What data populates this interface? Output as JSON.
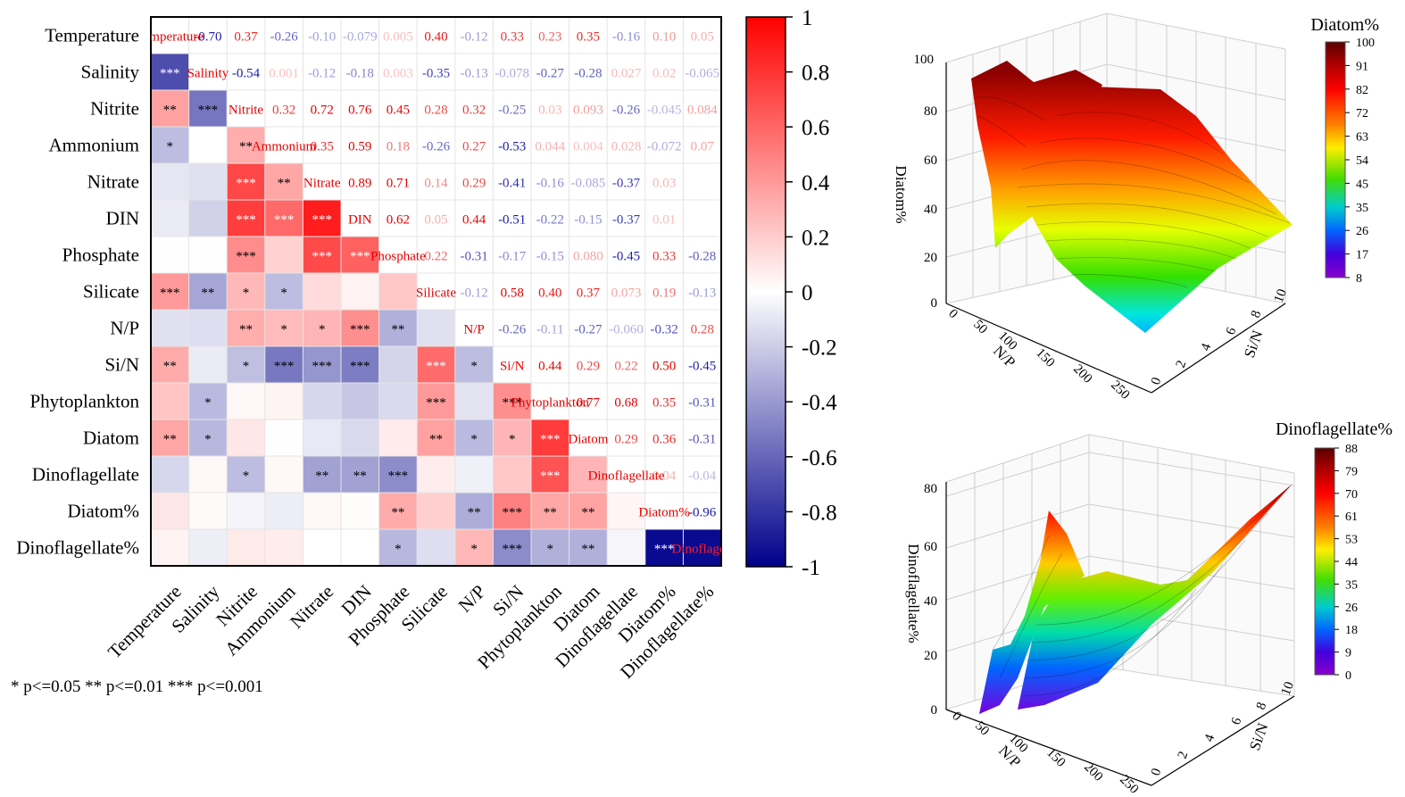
{
  "chart_data": [
    {
      "type": "heatmap",
      "variables": [
        "Temperature",
        "Salinity",
        "Nitrite",
        "Ammonium",
        "Nitrate",
        "DIN",
        "Phosphate",
        "Silicate",
        "N/P",
        "Si/N",
        "Phytoplankton",
        "Diatom",
        "Dinoflagellate",
        "Diatom%",
        "Dinoflagellate%"
      ],
      "diagonal_labels": [
        "Temperature",
        "Salinity",
        "Nitrite",
        "Ammonium",
        "Nitrate",
        "DIN",
        "Phosphate",
        "Silicate",
        "N/P",
        "Si/N",
        "Phytoplankton",
        "Diatom",
        "Dinoflagellate",
        "Diatom%",
        "Dinoflagell"
      ],
      "upper_values": [
        [
          "",
          "-0.70",
          "0.37",
          "-0.26",
          "-0.10",
          "-0.079",
          "0.005",
          "0.40",
          "-0.12",
          "0.33",
          "0.23",
          "0.35",
          "-0.16",
          "0.10",
          "0.05"
        ],
        [
          "",
          "",
          "-0.54",
          "0.001",
          "-0.12",
          "-0.18",
          "0.003",
          "-0.35",
          "-0.13",
          "-0.078",
          "-0.27",
          "-0.28",
          "0.027",
          "0.02",
          "-0.065"
        ],
        [
          "",
          "",
          "",
          "0.32",
          "0.72",
          "0.76",
          "0.45",
          "0.28",
          "0.32",
          "-0.25",
          "0.03",
          "0.093",
          "-0.26",
          "-0.045",
          "0.084"
        ],
        [
          "",
          "",
          "",
          "",
          "0.35",
          "0.59",
          "0.18",
          "-0.26",
          "0.27",
          "-0.53",
          "0.044",
          "0.004",
          "0.028",
          "-0.072",
          "0.07"
        ],
        [
          "",
          "",
          "",
          "",
          "",
          "0.89",
          "0.71",
          "0.14",
          "0.29",
          "-0.41",
          "-0.16",
          "-0.085",
          "-0.37",
          "0.03",
          ""
        ],
        [
          "",
          "",
          "",
          "",
          "",
          "",
          "0.62",
          "0.05",
          "0.44",
          "-0.51",
          "-0.22",
          "-0.15",
          "-0.37",
          "0.01",
          ""
        ],
        [
          "",
          "",
          "",
          "",
          "",
          "",
          "",
          "0.22",
          "-0.31",
          "-0.17",
          "-0.15",
          "0.080",
          "-0.45",
          "0.33",
          "-0.28"
        ],
        [
          "",
          "",
          "",
          "",
          "",
          "",
          "",
          "",
          "-0.12",
          "0.58",
          "0.40",
          "0.37",
          "0.073",
          "0.19",
          "-0.13"
        ],
        [
          "",
          "",
          "",
          "",
          "",
          "",
          "",
          "",
          "",
          "-0.26",
          "-0.11",
          "-0.27",
          "-0.060",
          "-0.32",
          "0.28"
        ],
        [
          "",
          "",
          "",
          "",
          "",
          "",
          "",
          "",
          "",
          "",
          "0.44",
          "0.29",
          "0.22",
          "0.50",
          "-0.45"
        ],
        [
          "",
          "",
          "",
          "",
          "",
          "",
          "",
          "",
          "",
          "",
          "",
          "0.77",
          "0.68",
          "0.35",
          "-0.31"
        ],
        [
          "",
          "",
          "",
          "",
          "",
          "",
          "",
          "",
          "",
          "",
          "",
          "",
          "0.29",
          "0.36",
          "-0.31"
        ],
        [
          "",
          "",
          "",
          "",
          "",
          "",
          "",
          "",
          "",
          "",
          "",
          "",
          "",
          "0.04",
          "-0.04"
        ],
        [
          "",
          "",
          "",
          "",
          "",
          "",
          "",
          "",
          "",
          "",
          "",
          "",
          "",
          "",
          "-0.96"
        ],
        [
          "",
          "",
          "",
          "",
          "",
          "",
          "",
          "",
          "",
          "",
          "",
          "",
          "",
          "",
          ""
        ]
      ],
      "lower_values": [
        [
          1.0
        ],
        [
          -0.7,
          1.0
        ],
        [
          0.37,
          -0.54,
          1.0
        ],
        [
          -0.26,
          0.001,
          0.32,
          1.0
        ],
        [
          -0.1,
          -0.12,
          0.72,
          0.35,
          1.0
        ],
        [
          -0.079,
          -0.18,
          0.76,
          0.59,
          0.89,
          1.0
        ],
        [
          0.005,
          0.003,
          0.45,
          0.18,
          0.71,
          0.62,
          1.0
        ],
        [
          0.4,
          -0.35,
          0.28,
          -0.26,
          0.14,
          0.05,
          0.22,
          1.0
        ],
        [
          -0.12,
          -0.13,
          0.32,
          0.27,
          0.29,
          0.44,
          -0.31,
          -0.12,
          1.0
        ],
        [
          0.33,
          -0.078,
          -0.25,
          -0.53,
          -0.41,
          -0.51,
          -0.17,
          0.58,
          -0.26,
          1.0
        ],
        [
          0.23,
          -0.27,
          0.03,
          0.044,
          -0.16,
          -0.22,
          -0.15,
          0.4,
          -0.11,
          0.44,
          1.0
        ],
        [
          0.35,
          -0.28,
          0.093,
          0.004,
          -0.085,
          -0.15,
          0.08,
          0.37,
          -0.27,
          0.29,
          0.77,
          1.0
        ],
        [
          -0.16,
          0.027,
          -0.26,
          0.028,
          -0.37,
          -0.37,
          -0.45,
          0.073,
          -0.06,
          0.22,
          0.68,
          0.29,
          1.0
        ],
        [
          0.1,
          0.02,
          -0.045,
          -0.072,
          0.03,
          0.01,
          0.33,
          0.19,
          -0.32,
          0.5,
          0.35,
          0.36,
          0.04,
          1.0
        ],
        [
          0.05,
          -0.065,
          0.084,
          0.07,
          0.0,
          0.0,
          -0.28,
          -0.13,
          0.28,
          -0.45,
          -0.31,
          -0.31,
          -0.04,
          -0.96,
          -0.96
        ]
      ],
      "significance": [
        [
          ""
        ],
        [
          "***",
          ""
        ],
        [
          "**",
          "***",
          ""
        ],
        [
          "*",
          "",
          "**",
          ""
        ],
        [
          "",
          "",
          "***",
          "**",
          ""
        ],
        [
          "",
          "",
          "***",
          "***",
          "***",
          ""
        ],
        [
          "",
          "",
          "***",
          "",
          "***",
          "***",
          ""
        ],
        [
          "***",
          "**",
          "*",
          "*",
          "",
          "",
          "",
          ""
        ],
        [
          "",
          "",
          "**",
          "*",
          "*",
          "***",
          "**",
          "",
          ""
        ],
        [
          "**",
          "",
          "*",
          "***",
          "***",
          "***",
          "",
          "***",
          "*",
          ""
        ],
        [
          "",
          "*",
          "",
          "",
          "",
          "",
          "",
          "***",
          "",
          "***",
          ""
        ],
        [
          "**",
          "*",
          "",
          "",
          "",
          "",
          "",
          "**",
          "*",
          "*",
          "***",
          ""
        ],
        [
          "",
          "",
          "*",
          "",
          "**",
          "**",
          "***",
          "",
          "",
          "",
          "***",
          "",
          ""
        ],
        [
          "",
          "",
          "",
          "",
          "",
          "",
          "**",
          "",
          "**",
          "***",
          "**",
          "**",
          "",
          ""
        ],
        [
          "",
          "",
          "",
          "",
          "",
          "",
          "*",
          "",
          "*",
          "***",
          "*",
          "**",
          "",
          "***",
          ""
        ]
      ],
      "color_scale": {
        "min": -1,
        "max": 1,
        "ticks": [
          "1",
          "0.8",
          "0.6",
          "0.4",
          "0.2",
          "0",
          "-0.2",
          "-0.4",
          "-0.6",
          "-0.8",
          "-1"
        ]
      },
      "colors": {
        "positive": "#ff0000",
        "negative": "#00008b",
        "zero": "#ffffff",
        "upper_text_positive": "#e60000",
        "upper_text_negative": "#1a1aa8"
      },
      "footnote": "* p<=0.05  ** p<=0.01  *** p<=0.001"
    },
    {
      "type": "surface",
      "title": "Diatom%",
      "xlabel": "N/P",
      "ylabel": "Si/N",
      "zlabel": "Diatom%",
      "x_ticks": [
        "0",
        "50",
        "100",
        "150",
        "200",
        "250"
      ],
      "y_ticks": [
        "0",
        "2",
        "4",
        "6",
        "8",
        "10"
      ],
      "z_ticks": [
        "0",
        "20",
        "40",
        "60",
        "80",
        "100"
      ],
      "colorbar_ticks": [
        "100",
        "91",
        "82",
        "72",
        "63",
        "54",
        "45",
        "35",
        "26",
        "17",
        "8"
      ],
      "zlim": [
        0,
        100
      ]
    },
    {
      "type": "surface",
      "title": "Dinoflagellate%",
      "xlabel": "N/P",
      "ylabel": "Si/N",
      "zlabel": "Dinoflagellate%",
      "x_ticks": [
        "0",
        "50",
        "100",
        "150",
        "200",
        "250"
      ],
      "y_ticks": [
        "0",
        "2",
        "4",
        "6",
        "8",
        "10"
      ],
      "z_ticks": [
        "0",
        "20",
        "40",
        "60",
        "80"
      ],
      "colorbar_ticks": [
        "88",
        "79",
        "70",
        "61",
        "53",
        "44",
        "35",
        "26",
        "18",
        "9",
        "0"
      ],
      "zlim": [
        0,
        88
      ]
    }
  ]
}
